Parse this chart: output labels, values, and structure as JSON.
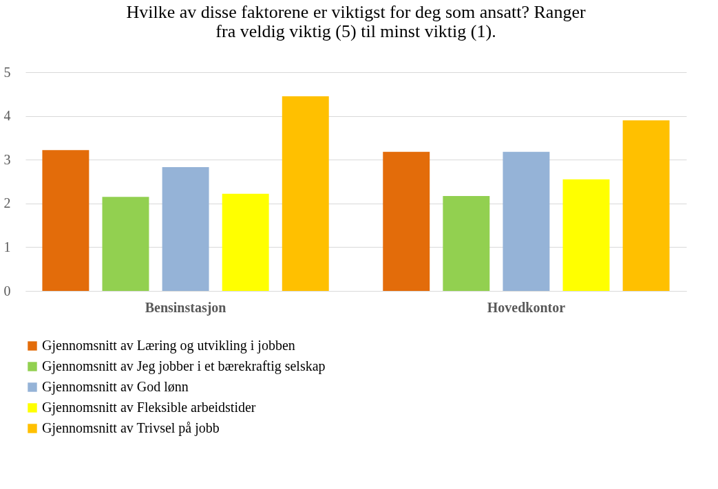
{
  "chart_data": {
    "type": "bar",
    "title": [
      "Hvilke av disse faktorene er viktigst for deg som ansatt? Ranger",
      "fra veldig viktig (5) til minst viktig (1)."
    ],
    "categories": [
      "Bensinstasjon",
      "Hovedkontor"
    ],
    "series": [
      {
        "name": "Gjennomsnitt av Læring og utvikling i jobben",
        "color": "#e36c0a",
        "values": [
          3.22,
          3.18
        ]
      },
      {
        "name": "Gjennomsnitt av Jeg jobber i et bærekraftig selskap",
        "color": "#92d050",
        "values": [
          2.15,
          2.17
        ]
      },
      {
        "name": "Gjennomsnitt av God lønn",
        "color": "#95b3d7",
        "values": [
          2.83,
          3.18
        ]
      },
      {
        "name": "Gjennomsnitt av Fleksible arbeidstider",
        "color": "#ffff00",
        "values": [
          2.22,
          2.55
        ]
      },
      {
        "name": "Gjennomsnitt av Trivsel på jobb",
        "color": "#ffc000",
        "values": [
          4.45,
          3.9
        ]
      }
    ],
    "ylim": [
      0,
      5
    ],
    "yticks": [
      0,
      1,
      2,
      3,
      4,
      5
    ],
    "grid": "y",
    "legend": "bottom"
  }
}
